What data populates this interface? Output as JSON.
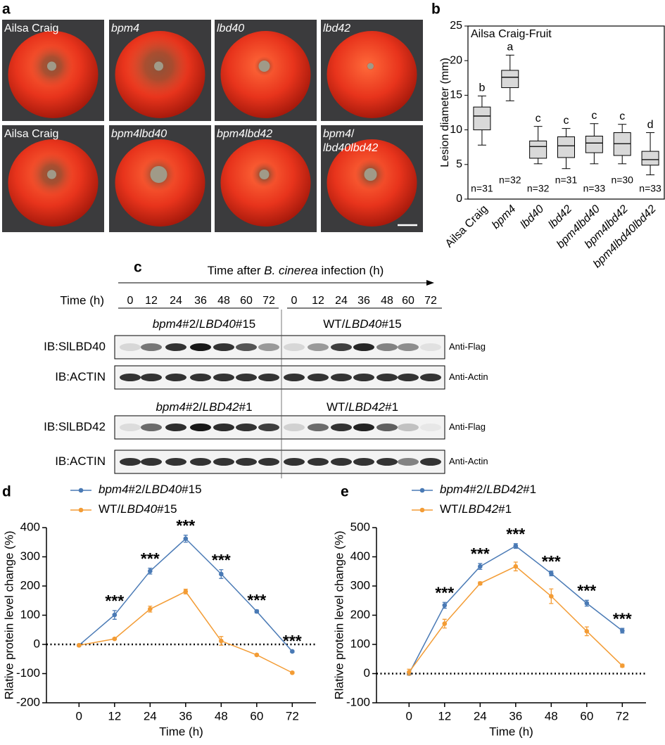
{
  "panel_labels": [
    "a",
    "b",
    "c",
    "d",
    "e"
  ],
  "photos": {
    "labels": [
      [
        "Ailsa Craig"
      ],
      [
        "bpm4"
      ],
      [
        "lbd40"
      ],
      [
        "lbd42"
      ],
      [
        "Ailsa Craig"
      ],
      [
        "bpm4lbd40"
      ],
      [
        "bpm4lbd42"
      ],
      [
        "bpm4/",
        "lbd40lbd42"
      ]
    ]
  },
  "blot": {
    "arrow_label": [
      "Time after ",
      "B. cinerea",
      " infection (h)"
    ],
    "time_label": "Time (h)",
    "time_points": [
      [
        0,
        12,
        24,
        36,
        48,
        60,
        72
      ],
      [
        0,
        12,
        24,
        36,
        48,
        60,
        72
      ]
    ],
    "conditions": [
      [
        "bpm4#2/LBD40#15",
        "WT/LBD40#15"
      ],
      [
        "bpm4#2/LBD42#1",
        "WT/LBD42#1"
      ]
    ],
    "rows": [
      {
        "label": "IB:SlLBD40",
        "antibody": "Anti-Flag"
      },
      {
        "label": "IB:ACTIN",
        "antibody": "Anti-Actin"
      },
      {
        "label": "IB:SlLBD42",
        "antibody": "Anti-Flag"
      },
      {
        "label": "IB:ACTIN",
        "antibody": "Anti-Actin"
      }
    ]
  },
  "chart_data": [
    {
      "type": "box",
      "title": "Ailsa Craig-Fruit",
      "y_label": "Lesion diameter (mm)",
      "categories": [
        "Ailsa Craig",
        "bpm4",
        "lbd40",
        "lbd42",
        "bpm4lbd40",
        "bpm4lbd42",
        "bpm4lbd40lbd42"
      ],
      "min": [
        7.8,
        14.2,
        5.1,
        4.4,
        5.1,
        5.1,
        3.5
      ],
      "q1": [
        10.0,
        16.1,
        5.9,
        6.0,
        6.7,
        6.3,
        4.9
      ],
      "median": [
        12.0,
        17.6,
        7.6,
        7.7,
        8.1,
        8.0,
        5.7
      ],
      "q3": [
        13.3,
        18.6,
        8.4,
        9.0,
        9.1,
        9.6,
        6.9
      ],
      "max": [
        14.9,
        20.8,
        10.5,
        10.2,
        10.9,
        10.8,
        9.6
      ],
      "letters": [
        "b",
        "a",
        "c",
        "c",
        "c",
        "c",
        "d"
      ],
      "n_labels": [
        "n=31",
        "n=32",
        "n=32",
        "n=31",
        "n=33",
        "n=30",
        "n=33"
      ],
      "color": "#d9d9d9",
      "ylim": [
        0,
        25
      ],
      "yticks": [
        0,
        5,
        10,
        15,
        20,
        25
      ]
    },
    {
      "type": "line",
      "x_label": "Time (h)",
      "y_label": "Rlative protein level change (%)",
      "x": [
        0,
        12,
        24,
        36,
        48,
        60,
        72
      ],
      "xlim": [
        -11,
        80
      ],
      "xticks": [
        0,
        12,
        24,
        36,
        48,
        60,
        72
      ],
      "ylim": [
        -200,
        400
      ],
      "yticks": [
        -200,
        -100,
        0,
        100,
        200,
        300,
        400
      ],
      "hline": 0,
      "series": [
        {
          "name": "bpm4#2/LBD40#15",
          "color": "#4a7ab5",
          "values": [
            -3,
            101,
            251,
            362,
            241,
            113,
            -24
          ],
          "errors": [
            3,
            15,
            10,
            12,
            15,
            5,
            3
          ]
        },
        {
          "name": "WT/LBD40#15",
          "color": "#f39c35",
          "values": [
            -3,
            19,
            121,
            181,
            12,
            -36,
            -97
          ],
          "errors": [
            3,
            3,
            10,
            8,
            15,
            3,
            3
          ]
        }
      ],
      "annotations": [
        {
          "x": 12,
          "text": "***"
        },
        {
          "x": 24,
          "text": "***"
        },
        {
          "x": 36,
          "text": "***"
        },
        {
          "x": 48,
          "text": "***"
        },
        {
          "x": 60,
          "text": "***"
        },
        {
          "x": 72,
          "text": "***"
        }
      ]
    },
    {
      "type": "line",
      "x_label": "Time (h)",
      "y_label": "Rlative protein level change (%)",
      "x": [
        0,
        12,
        24,
        36,
        48,
        60,
        72
      ],
      "xlim": [
        -11,
        80
      ],
      "xticks": [
        0,
        12,
        24,
        36,
        48,
        60,
        72
      ],
      "ylim": [
        -100,
        500
      ],
      "yticks": [
        -100,
        0,
        100,
        200,
        300,
        400,
        500
      ],
      "hline": 0,
      "series": [
        {
          "name": "bpm4#2/LBD42#1",
          "color": "#4a7ab5",
          "values": [
            0,
            234,
            367,
            437,
            343,
            241,
            147
          ],
          "errors": [
            5,
            10,
            10,
            8,
            8,
            10,
            8
          ]
        },
        {
          "name": "WT/LBD42#1",
          "color": "#f39c35",
          "values": [
            5,
            171,
            309,
            367,
            265,
            145,
            27
          ],
          "errors": [
            10,
            15,
            5,
            15,
            25,
            15,
            5
          ]
        }
      ],
      "annotations": [
        {
          "x": 12,
          "text": "***"
        },
        {
          "x": 24,
          "text": "***"
        },
        {
          "x": 36,
          "text": "***"
        },
        {
          "x": 48,
          "text": "***"
        },
        {
          "x": 60,
          "text": "***"
        },
        {
          "x": 72,
          "text": "***"
        }
      ]
    }
  ]
}
